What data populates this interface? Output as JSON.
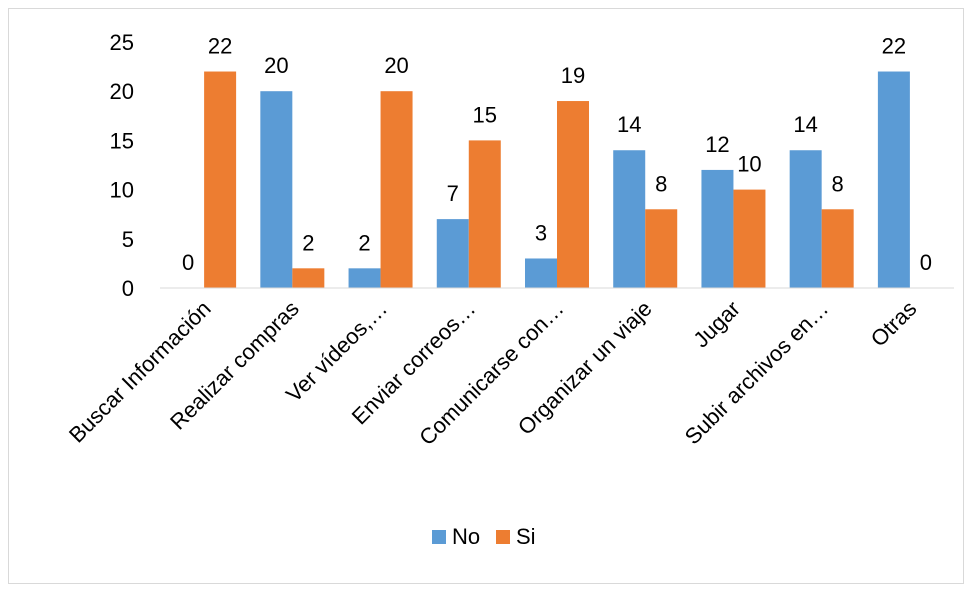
{
  "chart_data": {
    "type": "bar",
    "categories": [
      "Buscar Información",
      "Realizar compras",
      "Ver vídeos,…",
      "Enviar correos…",
      "Comunicarse con…",
      "Organizar un viaje",
      "Jugar",
      "Subir archivos en…",
      "Otras"
    ],
    "series": [
      {
        "name": "No",
        "color": "#5b9bd5",
        "values": [
          0,
          20,
          2,
          7,
          3,
          14,
          12,
          14,
          22
        ]
      },
      {
        "name": "Si",
        "color": "#ed7d31",
        "values": [
          22,
          2,
          20,
          15,
          19,
          8,
          10,
          8,
          0
        ]
      }
    ],
    "ylim": [
      0,
      25
    ],
    "yticks": [
      0,
      5,
      10,
      15,
      20,
      25
    ],
    "grid": false,
    "legend": "bottom",
    "data_labels": true
  }
}
